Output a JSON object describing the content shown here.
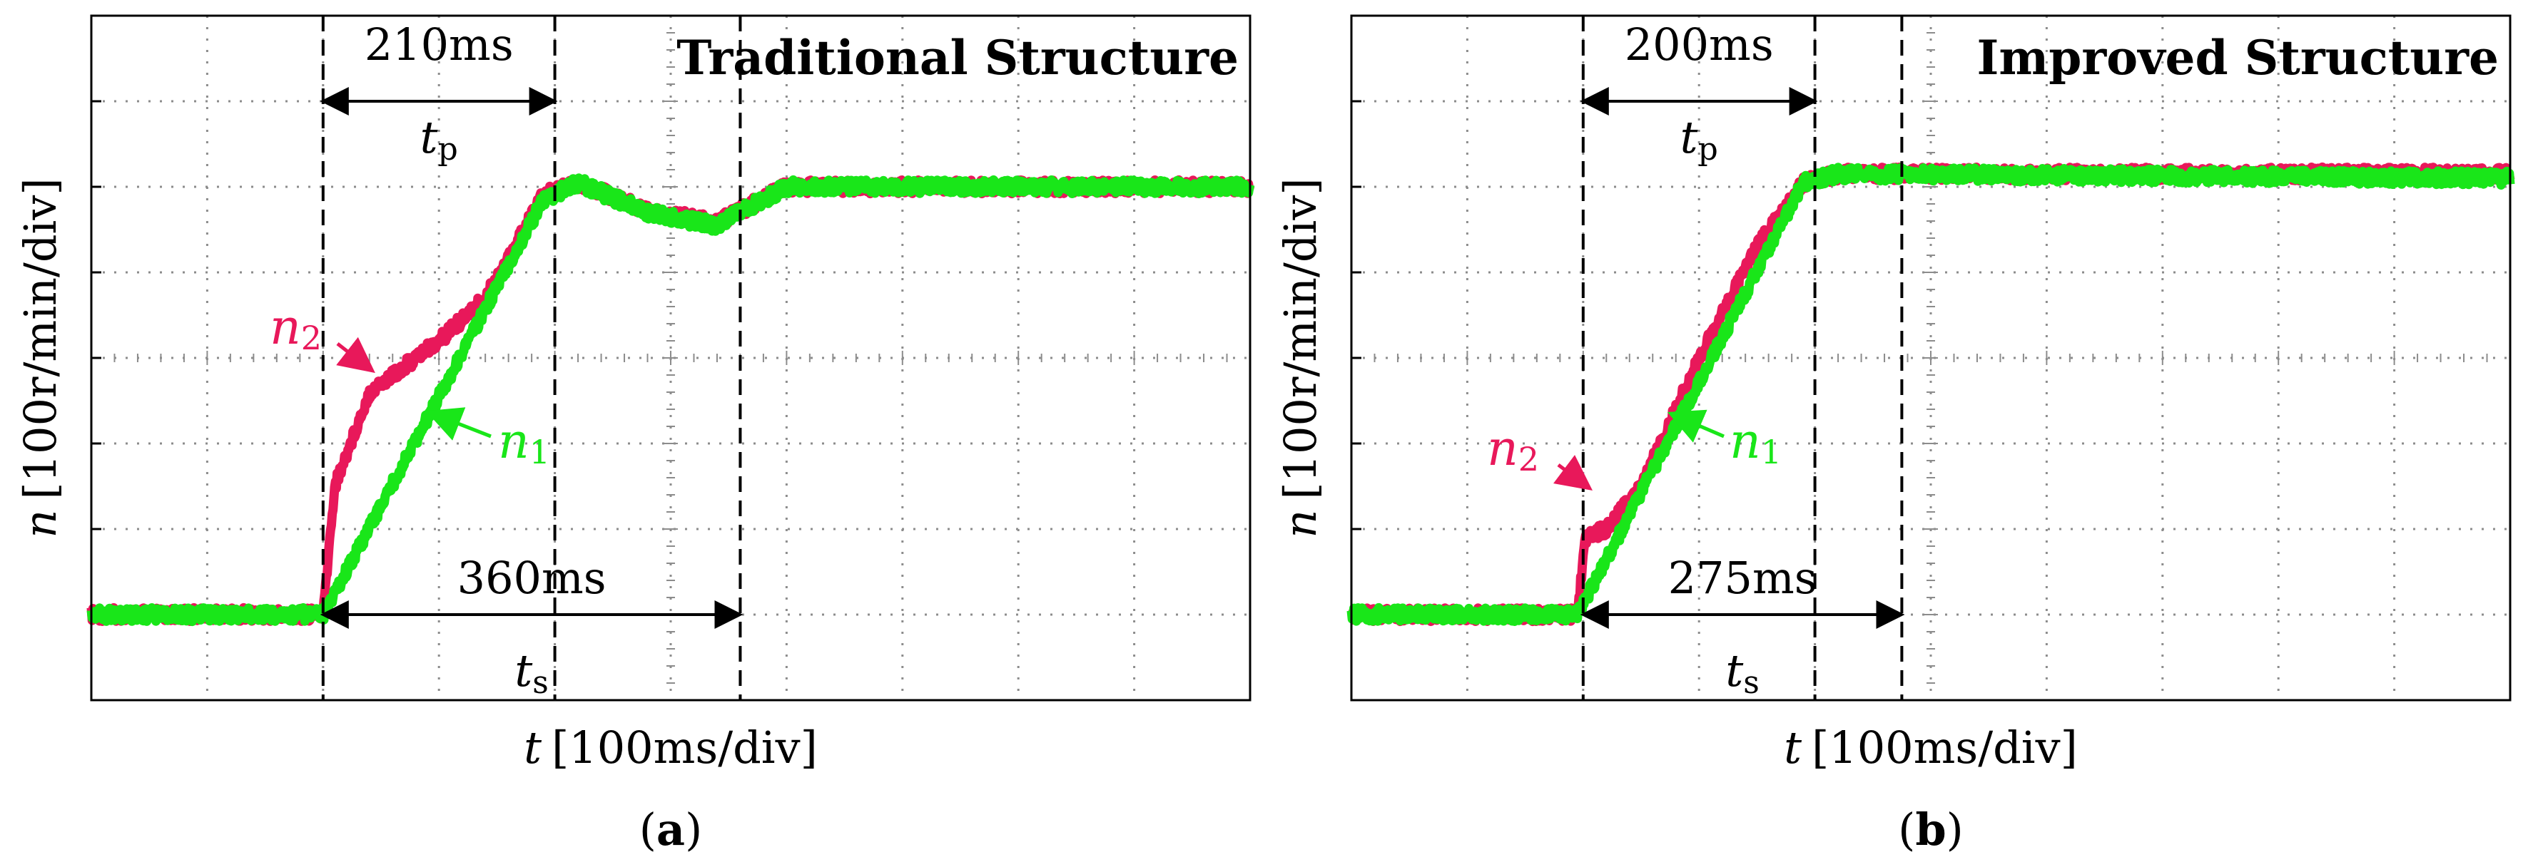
{
  "panels": [
    {
      "panel_label": "a",
      "title": "Traditional Structure",
      "ylabel_var": "n",
      "ylabel_unit": "[100r/min/div]",
      "xlabel_var": "t",
      "xlabel_unit": "[100ms/div]",
      "tp_value": "210ms",
      "ts_value": "360ms",
      "tp_var": "t",
      "tp_sub": "p",
      "ts_var": "t",
      "ts_sub": "s",
      "n2_var": "n",
      "n2_sub": "2",
      "n1_var": "n",
      "n1_sub": "1"
    },
    {
      "panel_label": "b",
      "title": "Improved Structure",
      "ylabel_var": "n",
      "ylabel_unit": "[100r/min/div]",
      "xlabel_var": "t",
      "xlabel_unit": "[100ms/div]",
      "tp_value": "200ms",
      "ts_value": "275ms",
      "tp_var": "t",
      "tp_sub": "p",
      "ts_var": "t",
      "ts_sub": "s",
      "n2_var": "n",
      "n2_sub": "2",
      "n1_var": "n",
      "n1_sub": "1"
    }
  ],
  "colors": {
    "n1": "#19e619",
    "n2": "#e8185a",
    "grid": "#8c8c8c",
    "axis": "#000000"
  },
  "chart_data": [
    {
      "type": "line",
      "title": "Traditional Structure",
      "xlabel": "t [100ms/div]",
      "ylabel": "n [100r/min/div]",
      "grid": true,
      "x_divisions": 10,
      "y_divisions": 8,
      "xlim": [
        0,
        10
      ],
      "ylim": [
        0,
        8
      ],
      "t_step": 2,
      "tp_marker": 4.0,
      "ts_marker": 5.6,
      "series": [
        {
          "name": "n1",
          "x": [
            0,
            2,
            3.9,
            4.2,
            4.8,
            5.4,
            6,
            10
          ],
          "y": [
            1,
            1,
            5.85,
            6.05,
            5.7,
            5.55,
            6,
            6
          ]
        },
        {
          "name": "n2",
          "x": [
            0,
            2,
            2.1,
            2.4,
            3,
            3.4,
            3.9,
            4.2,
            4.8,
            5.4,
            6,
            10
          ],
          "y": [
            1,
            1,
            2.5,
            3.6,
            4.2,
            4.7,
            5.9,
            6.05,
            5.72,
            5.58,
            6,
            6
          ]
        }
      ]
    },
    {
      "type": "line",
      "title": "Improved Structure",
      "xlabel": "t [100ms/div]",
      "ylabel": "n [100r/min/div]",
      "grid": true,
      "x_divisions": 10,
      "y_divisions": 8,
      "xlim": [
        0,
        10
      ],
      "ylim": [
        0,
        8
      ],
      "t_step": 2,
      "tp_marker": 4.0,
      "ts_marker": 4.75,
      "series": [
        {
          "name": "n1",
          "x": [
            0,
            1.95,
            3.9,
            4.2,
            10
          ],
          "y": [
            1,
            1,
            6.05,
            6.15,
            6.1
          ]
        },
        {
          "name": "n2",
          "x": [
            0,
            1.95,
            2.02,
            2.2,
            2.5,
            3,
            3.5,
            3.9,
            4.2,
            10
          ],
          "y": [
            1,
            1,
            1.9,
            2.0,
            2.5,
            4.0,
            5.3,
            6.05,
            6.15,
            6.15
          ]
        }
      ]
    }
  ]
}
